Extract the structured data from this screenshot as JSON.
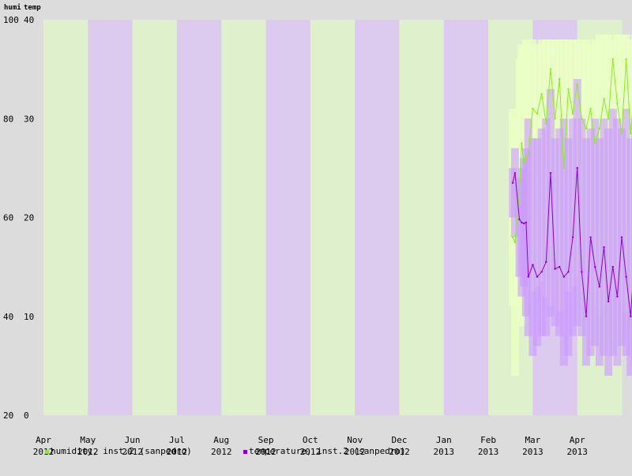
{
  "chart_data": {
    "type": "line",
    "axis_titles": {
      "left": "humi",
      "right": "temp"
    },
    "y_left": {
      "ticks": [
        "100",
        "80",
        "60",
        "40",
        "20"
      ],
      "range": [
        20,
        100
      ]
    },
    "y_right": {
      "ticks": [
        "40",
        "30",
        "20",
        "10",
        "0"
      ],
      "range": [
        0,
        40
      ]
    },
    "months": [
      {
        "label": "Apr",
        "year": "2012",
        "shade": "green"
      },
      {
        "label": "May",
        "year": "2012",
        "shade": "purple"
      },
      {
        "label": "Jun",
        "year": "2012",
        "shade": "green"
      },
      {
        "label": "Jul",
        "year": "2012",
        "shade": "purple"
      },
      {
        "label": "Aug",
        "year": "2012",
        "shade": "green"
      },
      {
        "label": "Sep",
        "year": "2012",
        "shade": "purple"
      },
      {
        "label": "Oct",
        "year": "2012",
        "shade": "green"
      },
      {
        "label": "Nov",
        "year": "2012",
        "shade": "purple"
      },
      {
        "label": "Dec",
        "year": "2012",
        "shade": "green"
      },
      {
        "label": "Jan",
        "year": "2013",
        "shade": "purple"
      },
      {
        "label": "Feb",
        "year": "2013",
        "shade": "green"
      },
      {
        "label": "Mar",
        "year": "2013",
        "shade": "purple"
      },
      {
        "label": "Apr",
        "year": "2013",
        "shade": "green"
      }
    ],
    "series": [
      {
        "name": "humidity, inst.2 (sanpedro)",
        "axis": "left",
        "color": "#88ee22",
        "band_color": "#eaffc4",
        "x": [
          10.55,
          10.6,
          10.7,
          10.75,
          10.8,
          10.85,
          10.9,
          11.0,
          11.1,
          11.2,
          11.3,
          11.4,
          11.5,
          11.6,
          11.7,
          11.8,
          11.9,
          12.0,
          12.1,
          12.2,
          12.3,
          12.4,
          12.5,
          12.6,
          12.7,
          12.8,
          12.9,
          13.0,
          13.1,
          13.2,
          13.3,
          13.4,
          13.5
        ],
        "y": [
          56,
          55,
          65,
          75,
          71,
          72,
          73,
          82,
          81,
          85,
          79,
          90,
          80,
          88,
          70,
          86,
          81,
          87,
          80,
          78,
          82,
          75,
          78,
          84,
          80,
          92,
          83,
          77,
          92,
          77,
          88,
          82,
          84
        ],
        "band_low": [
          42,
          28,
          45,
          38,
          50,
          52,
          40,
          45,
          46,
          47,
          44,
          42,
          50,
          41,
          48,
          45,
          46,
          48,
          45,
          44,
          46,
          42,
          40,
          42,
          44,
          45,
          46,
          43,
          41,
          42,
          44,
          40,
          45
        ],
        "band_high": [
          82,
          80,
          92,
          95,
          94,
          96,
          95,
          96,
          95,
          96,
          96,
          96,
          96,
          96,
          96,
          96,
          96,
          96,
          96,
          96,
          95,
          96,
          97,
          97,
          97,
          96,
          97,
          97,
          97,
          96,
          97,
          96,
          97
        ]
      },
      {
        "name": "temperature, inst.2 (sanpedro)",
        "axis": "right",
        "color": "#8800cc",
        "band_color": "#cc99ff",
        "x": [
          10.55,
          10.6,
          10.7,
          10.75,
          10.8,
          10.85,
          10.9,
          11.0,
          11.1,
          11.2,
          11.3,
          11.4,
          11.5,
          11.6,
          11.7,
          11.8,
          11.9,
          12.0,
          12.1,
          12.2,
          12.3,
          12.4,
          12.5,
          12.6,
          12.7,
          12.8,
          12.9,
          13.0,
          13.1,
          13.2,
          13.3,
          13.4,
          13.5
        ],
        "y": [
          23.5,
          24.5,
          19.8,
          19.5,
          19.4,
          19.5,
          14.0,
          15.2,
          14.0,
          14.5,
          15.5,
          24.5,
          14.8,
          15.0,
          14.0,
          14.5,
          18.0,
          25.0,
          14.5,
          10.0,
          18.0,
          15.0,
          13.0,
          17.0,
          11.5,
          15.0,
          12.0,
          18.0,
          14.0,
          10.0,
          17.0,
          14.0,
          17.0
        ],
        "band_low": [
          20,
          18,
          14,
          12,
          13,
          10,
          8,
          6,
          7,
          8,
          8,
          10,
          9,
          8,
          5,
          6,
          8,
          9,
          8,
          5,
          6,
          7,
          5,
          6,
          4,
          6,
          5,
          7,
          6,
          4,
          5,
          6,
          7
        ],
        "band_high": [
          25,
          27,
          24,
          25,
          26,
          27,
          30,
          28,
          28,
          29,
          30,
          33,
          28,
          29,
          30,
          28,
          30,
          34,
          30,
          28,
          29,
          30,
          28,
          30,
          29,
          31,
          30,
          29,
          31,
          28,
          30,
          29,
          30
        ]
      }
    ],
    "legend_position": "bottom-left"
  }
}
